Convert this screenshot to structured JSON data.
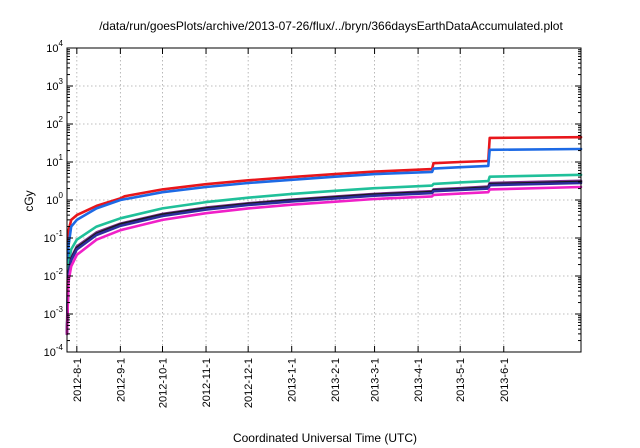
{
  "chart_data": {
    "type": "line",
    "title": "/data/run/goesPlots/archive/2013-07-26/flux/../bryn/366daysEarthDataAccumulated.plot",
    "xlabel": "Coordinated Universal Time (UTC)",
    "ylabel": "cGy",
    "yscale": "log",
    "ylim": [
      0.0001,
      10000
    ],
    "xlim": [
      "2012-07-25",
      "2013-07-26"
    ],
    "grid": true,
    "y_ticks": [
      {
        "base": "10",
        "exp": "-4",
        "value": 0.0001
      },
      {
        "base": "10",
        "exp": "-3",
        "value": 0.001
      },
      {
        "base": "10",
        "exp": "-2",
        "value": 0.01
      },
      {
        "base": "10",
        "exp": "-1",
        "value": 0.1
      },
      {
        "base": "10",
        "exp": "0",
        "value": 1
      },
      {
        "base": "10",
        "exp": "1",
        "value": 10
      },
      {
        "base": "10",
        "exp": "2",
        "value": 100
      },
      {
        "base": "10",
        "exp": "3",
        "value": 1000
      },
      {
        "base": "10",
        "exp": "4",
        "value": 10000
      }
    ],
    "x_ticks": [
      {
        "label": "2012-8-1",
        "date": "2012-08-01"
      },
      {
        "label": "2012-9-1",
        "date": "2012-09-01"
      },
      {
        "label": "2012-10-1",
        "date": "2012-10-01"
      },
      {
        "label": "2012-11-1",
        "date": "2012-11-01"
      },
      {
        "label": "2012-12-1",
        "date": "2012-12-01"
      },
      {
        "label": "2013-1-1",
        "date": "2013-01-01"
      },
      {
        "label": "2013-2-1",
        "date": "2013-02-01"
      },
      {
        "label": "2013-3-1",
        "date": "2013-03-01"
      },
      {
        "label": "2013-4-1",
        "date": "2013-04-01"
      },
      {
        "label": "2013-5-1",
        "date": "2013-05-01"
      },
      {
        "label": "2013-6-1",
        "date": "2013-06-01"
      }
    ],
    "series": [
      {
        "color": "#e8161b",
        "points": [
          [
            "2012-07-25",
            0.0003
          ],
          [
            "2012-07-26",
            0.15
          ],
          [
            "2012-07-28",
            0.3
          ],
          [
            "2012-08-01",
            0.4
          ],
          [
            "2012-08-15",
            0.7
          ],
          [
            "2012-09-01",
            1.1
          ],
          [
            "2012-09-04",
            1.25
          ],
          [
            "2012-10-01",
            1.9
          ],
          [
            "2012-11-01",
            2.6
          ],
          [
            "2012-12-01",
            3.3
          ],
          [
            "2013-01-01",
            4.0
          ],
          [
            "2013-02-01",
            4.8
          ],
          [
            "2013-03-01",
            5.6
          ],
          [
            "2013-04-11",
            6.5
          ],
          [
            "2013-04-12",
            9.3
          ],
          [
            "2013-05-01",
            10.0
          ],
          [
            "2013-05-20",
            10.6
          ],
          [
            "2013-05-21",
            11.0
          ],
          [
            "2013-05-22",
            43
          ],
          [
            "2013-07-26",
            45
          ]
        ]
      },
      {
        "color": "#1d6ae5",
        "points": [
          [
            "2012-07-25",
            0.0003
          ],
          [
            "2012-07-26",
            0.06
          ],
          [
            "2012-07-28",
            0.2
          ],
          [
            "2012-08-01",
            0.3
          ],
          [
            "2012-08-15",
            0.6
          ],
          [
            "2012-09-01",
            1.0
          ],
          [
            "2012-10-01",
            1.6
          ],
          [
            "2012-11-01",
            2.2
          ],
          [
            "2012-12-01",
            2.8
          ],
          [
            "2013-01-01",
            3.4
          ],
          [
            "2013-02-01",
            4.1
          ],
          [
            "2013-03-01",
            4.8
          ],
          [
            "2013-04-11",
            5.5
          ],
          [
            "2013-04-12",
            6.7
          ],
          [
            "2013-05-01",
            7.3
          ],
          [
            "2013-05-21",
            7.9
          ],
          [
            "2013-05-22",
            21
          ],
          [
            "2013-07-26",
            22
          ]
        ]
      },
      {
        "color": "#20c09a",
        "points": [
          [
            "2012-07-25",
            0.0003
          ],
          [
            "2012-07-26",
            0.02
          ],
          [
            "2012-07-28",
            0.05
          ],
          [
            "2012-08-01",
            0.09
          ],
          [
            "2012-08-15",
            0.2
          ],
          [
            "2012-09-01",
            0.33
          ],
          [
            "2012-10-01",
            0.6
          ],
          [
            "2012-11-01",
            0.88
          ],
          [
            "2012-12-01",
            1.15
          ],
          [
            "2013-01-01",
            1.45
          ],
          [
            "2013-02-01",
            1.75
          ],
          [
            "2013-03-01",
            2.05
          ],
          [
            "2013-04-11",
            2.4
          ],
          [
            "2013-04-12",
            2.65
          ],
          [
            "2013-05-01",
            2.9
          ],
          [
            "2013-05-21",
            3.15
          ],
          [
            "2013-05-22",
            4.1
          ],
          [
            "2013-07-26",
            4.6
          ]
        ]
      },
      {
        "color": "#7a2d8c",
        "points": [
          [
            "2012-07-25",
            0.0003
          ],
          [
            "2012-07-26",
            0.012
          ],
          [
            "2012-07-28",
            0.03
          ],
          [
            "2012-08-01",
            0.06
          ],
          [
            "2012-08-15",
            0.14
          ],
          [
            "2012-09-01",
            0.24
          ],
          [
            "2012-10-01",
            0.43
          ],
          [
            "2012-11-01",
            0.63
          ],
          [
            "2012-12-01",
            0.82
          ],
          [
            "2013-01-01",
            1.02
          ],
          [
            "2013-02-01",
            1.23
          ],
          [
            "2013-03-01",
            1.45
          ],
          [
            "2013-04-11",
            1.7
          ],
          [
            "2013-04-12",
            1.9
          ],
          [
            "2013-05-01",
            2.05
          ],
          [
            "2013-05-21",
            2.25
          ],
          [
            "2013-05-22",
            2.8
          ],
          [
            "2013-07-26",
            3.2
          ]
        ]
      },
      {
        "color": "#1a1a1a",
        "points": [
          [
            "2012-07-25",
            0.0003
          ],
          [
            "2012-07-26",
            0.011
          ],
          [
            "2012-07-28",
            0.028
          ],
          [
            "2012-08-01",
            0.055
          ],
          [
            "2012-08-15",
            0.13
          ],
          [
            "2012-09-01",
            0.23
          ],
          [
            "2012-10-01",
            0.41
          ],
          [
            "2012-11-01",
            0.6
          ],
          [
            "2012-12-01",
            0.79
          ],
          [
            "2013-01-01",
            0.98
          ],
          [
            "2013-02-01",
            1.18
          ],
          [
            "2013-03-01",
            1.39
          ],
          [
            "2013-04-11",
            1.62
          ],
          [
            "2013-04-12",
            1.8
          ],
          [
            "2013-05-01",
            1.95
          ],
          [
            "2013-05-21",
            2.12
          ],
          [
            "2013-05-22",
            2.6
          ],
          [
            "2013-07-26",
            3.0
          ]
        ]
      },
      {
        "color": "#2d2d9e",
        "points": [
          [
            "2012-07-25",
            0.0003
          ],
          [
            "2012-07-26",
            0.01
          ],
          [
            "2012-07-28",
            0.026
          ],
          [
            "2012-08-01",
            0.05
          ],
          [
            "2012-08-15",
            0.12
          ],
          [
            "2012-09-01",
            0.21
          ],
          [
            "2012-10-01",
            0.38
          ],
          [
            "2012-11-01",
            0.56
          ],
          [
            "2012-12-01",
            0.74
          ],
          [
            "2013-01-01",
            0.92
          ],
          [
            "2013-02-01",
            1.1
          ],
          [
            "2013-03-01",
            1.3
          ],
          [
            "2013-04-11",
            1.52
          ],
          [
            "2013-04-12",
            1.7
          ],
          [
            "2013-05-01",
            1.84
          ],
          [
            "2013-05-21",
            2.0
          ],
          [
            "2013-05-22",
            2.45
          ],
          [
            "2013-07-26",
            2.8
          ]
        ]
      },
      {
        "color": "#f020c8",
        "points": [
          [
            "2012-07-25",
            0.0003
          ],
          [
            "2012-07-26",
            0.007
          ],
          [
            "2012-07-28",
            0.018
          ],
          [
            "2012-08-01",
            0.036
          ],
          [
            "2012-08-15",
            0.09
          ],
          [
            "2012-09-01",
            0.16
          ],
          [
            "2012-10-01",
            0.3
          ],
          [
            "2012-11-01",
            0.45
          ],
          [
            "2012-12-01",
            0.6
          ],
          [
            "2013-01-01",
            0.75
          ],
          [
            "2013-02-01",
            0.9
          ],
          [
            "2013-03-01",
            1.06
          ],
          [
            "2013-04-11",
            1.24
          ],
          [
            "2013-04-12",
            1.36
          ],
          [
            "2013-05-01",
            1.47
          ],
          [
            "2013-05-21",
            1.6
          ],
          [
            "2013-05-22",
            1.9
          ],
          [
            "2013-07-26",
            2.2
          ]
        ]
      }
    ]
  }
}
